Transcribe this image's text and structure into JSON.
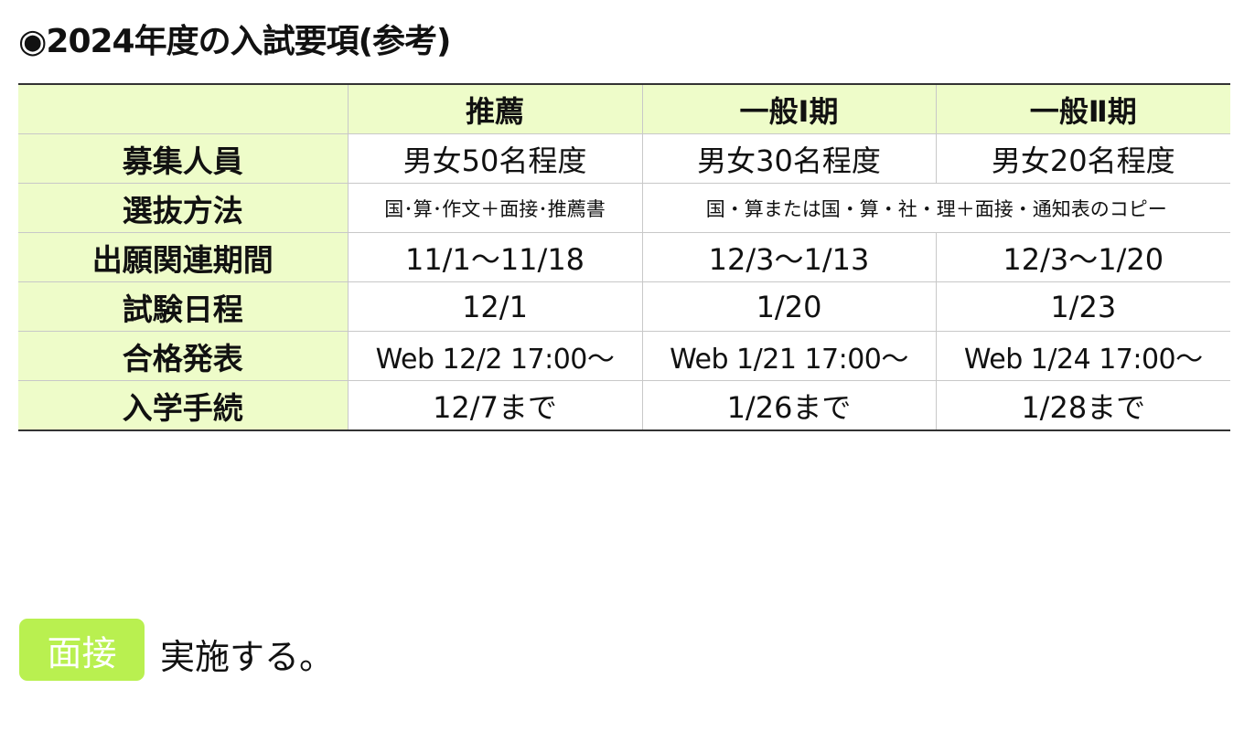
{
  "title": "◉2024年度の入試要項(参考)",
  "table": {
    "headers": [
      "",
      "推薦",
      "一般Ⅰ期",
      "一般Ⅱ期"
    ],
    "rows": [
      {
        "label": "募集人員",
        "cells": [
          "男女50名程度",
          "男女30名程度",
          "男女20名程度"
        ]
      },
      {
        "label": "選抜方法",
        "cells": [
          "国･算･作文＋面接･推薦書",
          "国・算または国・算・社・理＋面接・通知表のコピー"
        ]
      },
      {
        "label": "出願関連期間",
        "cells": [
          "11/1〜11/18",
          "12/3〜1/13",
          "12/3〜1/20"
        ]
      },
      {
        "label": "試験日程",
        "cells": [
          "12/1",
          "1/20",
          "1/23"
        ]
      },
      {
        "label": "合格発表",
        "cells": [
          "Web 12/2 17:00〜",
          "Web 1/21 17:00〜",
          "Web 1/24 17:00〜"
        ]
      },
      {
        "label": "入学手続",
        "cells": [
          "12/7まで",
          "1/26まで",
          "1/28まで"
        ]
      }
    ]
  },
  "interview": {
    "badge": "面接",
    "text": "実施する。"
  },
  "colors": {
    "header_bg": "#eefcc9",
    "badge_bg": "#b9f050"
  }
}
